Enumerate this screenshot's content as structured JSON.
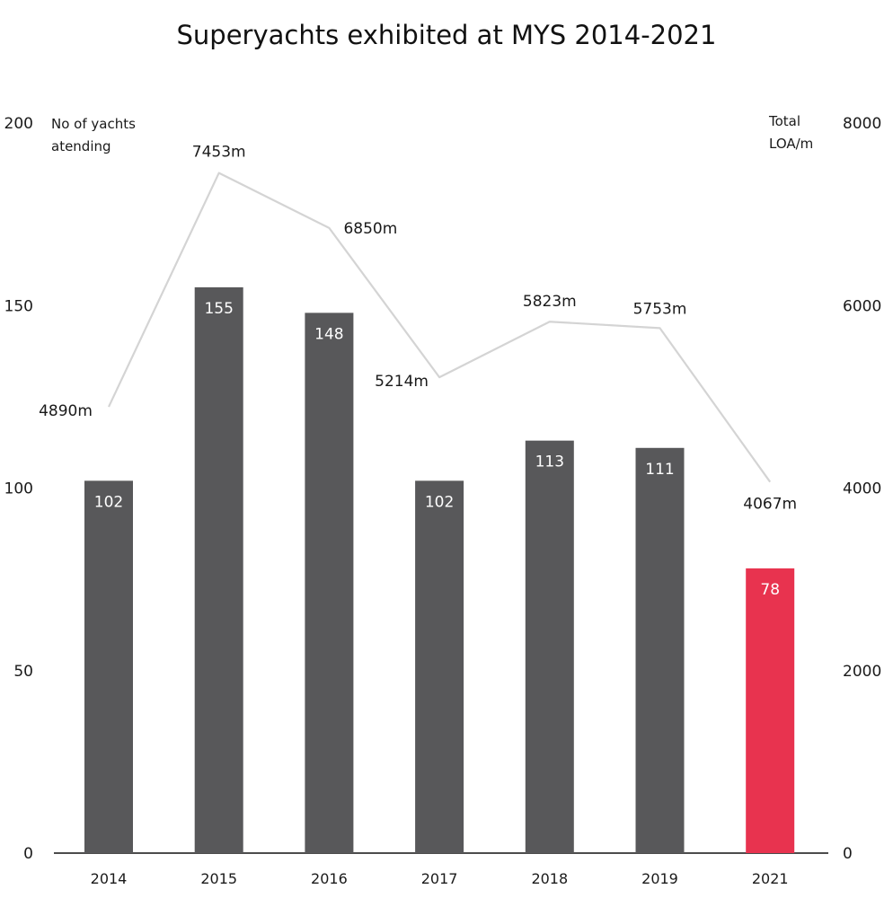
{
  "chart_data": {
    "type": "bar",
    "title": "Superyachts exhibited at MYS 2014-2021",
    "categories": [
      "2014",
      "2015",
      "2016",
      "2017",
      "2018",
      "2019",
      "2021"
    ],
    "series": [
      {
        "type": "bar",
        "axis": "left",
        "values": [
          102,
          155,
          148,
          102,
          113,
          111,
          78
        ],
        "value_labels": [
          "102",
          "155",
          "148",
          "102",
          "113",
          "111",
          "78"
        ],
        "colors": [
          "#58585a",
          "#58585a",
          "#58585a",
          "#58585a",
          "#58585a",
          "#58585a",
          "#e8334f"
        ]
      },
      {
        "type": "line",
        "axis": "right",
        "values": [
          4890,
          7453,
          6850,
          5214,
          5823,
          5753,
          4067
        ],
        "value_labels": [
          "4890m",
          "7453m",
          "6850m",
          "5214m",
          "5823m",
          "5753m",
          "4067m"
        ],
        "color": "#d4d4d4"
      }
    ],
    "y_left": {
      "title_lines": [
        "No of yachts",
        "atending"
      ],
      "range": [
        0,
        200
      ],
      "ticks": [
        "0",
        "50",
        "100",
        "150",
        "200"
      ]
    },
    "y_right": {
      "title_lines": [
        "Total",
        "LOA/m"
      ],
      "range": [
        0,
        8000
      ],
      "ticks": [
        "0",
        "2000",
        "4000",
        "6000",
        "8000"
      ]
    },
    "grid": false,
    "legend": "none"
  }
}
